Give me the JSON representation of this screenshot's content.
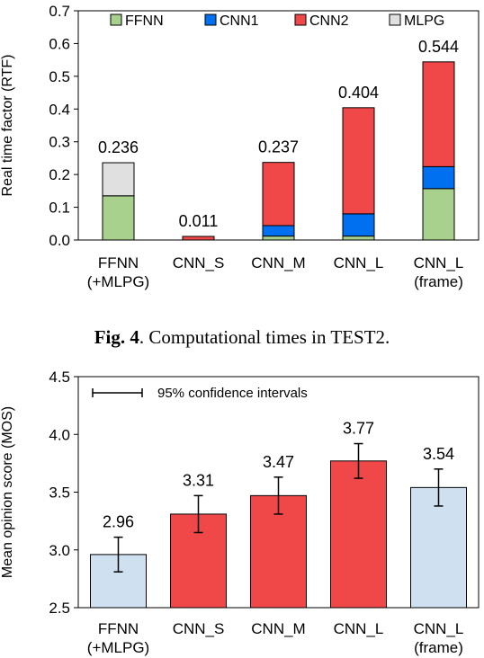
{
  "caption": {
    "label": "Fig. 4",
    "text": ". Computational times in TEST2."
  },
  "chart_data": [
    {
      "type": "bar",
      "stacked": true,
      "ylabel": "Real time factor (RTF)",
      "ylim": [
        0,
        0.7
      ],
      "yticks": [
        "0.0",
        "0.1",
        "0.2",
        "0.3",
        "0.4",
        "0.5",
        "0.6",
        "0.7"
      ],
      "ytick_values": [
        0,
        0.1,
        0.2,
        0.3,
        0.4,
        0.5,
        0.6,
        0.7
      ],
      "categories": [
        [
          "FFNN",
          "(+MLPG)"
        ],
        [
          "CNN_S"
        ],
        [
          "CNN_M"
        ],
        [
          "CNN_L"
        ],
        [
          "CNN_L",
          "(frame)"
        ]
      ],
      "series": [
        {
          "name": "FFNN",
          "color": "#a9d18e",
          "values": [
            0.135,
            0,
            0.012,
            0.012,
            0.157
          ]
        },
        {
          "name": "CNN1",
          "color": "#0070f0",
          "values": [
            0,
            0,
            0.032,
            0.068,
            0.067
          ]
        },
        {
          "name": "CNN2",
          "color": "#f04848",
          "values": [
            0,
            0.011,
            0.193,
            0.324,
            0.32
          ]
        },
        {
          "name": "MLPG",
          "color": "#e0e0e0",
          "values": [
            0.101,
            0,
            0,
            0,
            0
          ]
        }
      ],
      "totals": [
        "0.236",
        "0.011",
        "0.237",
        "0.404",
        "0.544"
      ],
      "total_values": [
        0.236,
        0.011,
        0.237,
        0.404,
        0.544
      ],
      "legend": "top",
      "grid": false
    },
    {
      "type": "bar",
      "ylabel": "Mean opinion score (MOS)",
      "ylim": [
        2.5,
        4.5
      ],
      "yticks": [
        "2.5",
        "3.0",
        "3.5",
        "4.0",
        "4.5"
      ],
      "ytick_values": [
        2.5,
        3.0,
        3.5,
        4.0,
        4.5
      ],
      "categories": [
        [
          "FFNN",
          "(+MLPG)"
        ],
        [
          "CNN_S"
        ],
        [
          "CNN_M"
        ],
        [
          "CNN_L"
        ],
        [
          "CNN_L",
          "(frame)"
        ]
      ],
      "values": [
        2.96,
        3.31,
        3.47,
        3.77,
        3.54
      ],
      "value_labels": [
        "2.96",
        "3.31",
        "3.47",
        "3.77",
        "3.54"
      ],
      "error": [
        0.15,
        0.16,
        0.16,
        0.15,
        0.16
      ],
      "colors": [
        "#cfe0f0",
        "#f04848",
        "#f04848",
        "#f04848",
        "#cfe0f0"
      ],
      "legend_text": "95% confidence intervals",
      "grid": false
    }
  ]
}
